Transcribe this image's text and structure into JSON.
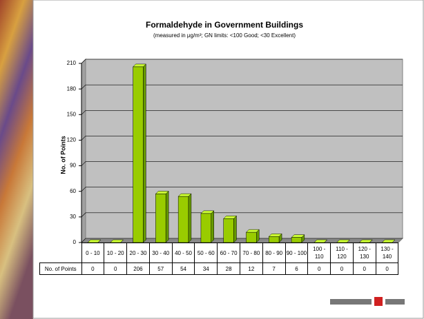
{
  "chart_data": {
    "type": "bar",
    "title": "Formaldehyde in Government Buildings",
    "subtitle": "(measured in μg/m³; GN limits: <100 Good; <30 Excellent)",
    "y_label": "No. of Points",
    "table_row_label": "No. of Points",
    "categories": [
      "0 - 10",
      "10 - 20",
      "20 - 30",
      "30 - 40",
      "40 - 50",
      "50 - 60",
      "60 - 70",
      "70 - 80",
      "80 - 90",
      "90 - 100",
      "100 - 110",
      "110 - 120",
      "120 - 130",
      "130 - 140"
    ],
    "values": [
      0,
      0,
      206,
      57,
      54,
      34,
      28,
      12,
      7,
      6,
      0,
      0,
      0,
      0
    ],
    "color": "#99cc00",
    "ylim": [
      0,
      210
    ],
    "yticks": [
      0,
      30,
      60,
      90,
      120,
      150,
      180,
      210
    ],
    "grid": true
  }
}
